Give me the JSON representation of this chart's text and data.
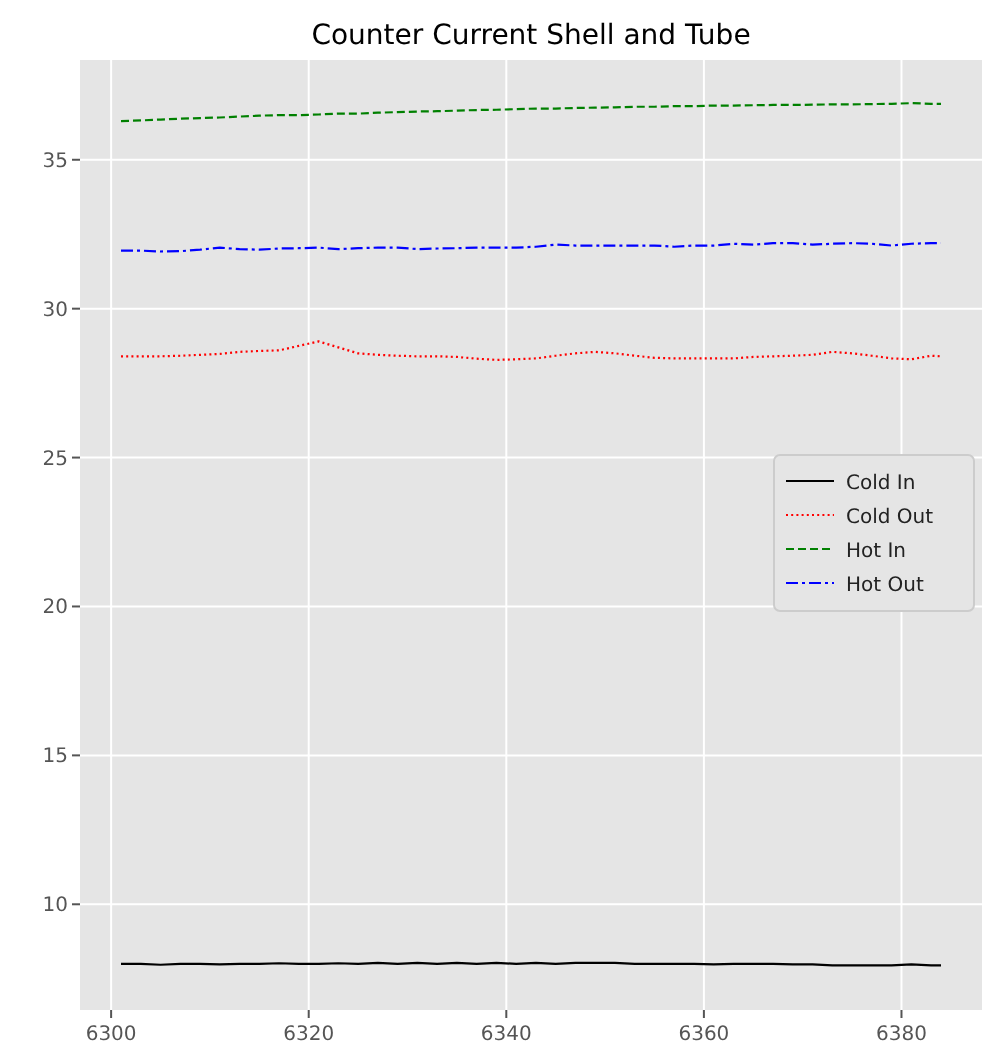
{
  "chart_data": {
    "type": "line",
    "title": "Counter Current Shell and Tube",
    "x": [
      6301,
      6303,
      6305,
      6307,
      6309,
      6311,
      6313,
      6315,
      6317,
      6319,
      6321,
      6323,
      6325,
      6327,
      6329,
      6331,
      6333,
      6335,
      6337,
      6339,
      6341,
      6343,
      6345,
      6347,
      6349,
      6351,
      6353,
      6355,
      6357,
      6359,
      6361,
      6363,
      6365,
      6367,
      6369,
      6371,
      6373,
      6375,
      6377,
      6379,
      6381,
      6383,
      6384
    ],
    "series": [
      {
        "name": "Cold In",
        "color": "#000000",
        "line_style": "solid",
        "values": [
          8.0,
          8.0,
          7.97,
          8.0,
          8.0,
          7.98,
          8.0,
          8.0,
          8.02,
          8.0,
          8.0,
          8.02,
          8.0,
          8.03,
          8.0,
          8.03,
          8.0,
          8.03,
          8.0,
          8.03,
          8.0,
          8.03,
          8.0,
          8.03,
          8.03,
          8.03,
          8.0,
          8.0,
          8.0,
          8.0,
          7.98,
          8.0,
          8.0,
          8.0,
          7.98,
          7.98,
          7.95,
          7.95,
          7.95,
          7.95,
          7.98,
          7.95,
          7.95
        ]
      },
      {
        "name": "Cold Out",
        "color": "#ff0000",
        "line_style": "dotted",
        "values": [
          28.4,
          28.4,
          28.4,
          28.42,
          28.45,
          28.48,
          28.55,
          28.58,
          28.6,
          28.75,
          28.9,
          28.7,
          28.5,
          28.45,
          28.42,
          28.4,
          28.4,
          28.38,
          28.32,
          28.28,
          28.3,
          28.33,
          28.42,
          28.5,
          28.55,
          28.5,
          28.42,
          28.35,
          28.33,
          28.33,
          28.33,
          28.33,
          28.38,
          28.4,
          28.42,
          28.45,
          28.55,
          28.5,
          28.42,
          28.33,
          28.3,
          28.42,
          28.4
        ]
      },
      {
        "name": "Hot In",
        "color": "#008000",
        "line_style": "dashed",
        "values": [
          36.3,
          36.32,
          36.35,
          36.38,
          36.4,
          36.42,
          36.45,
          36.48,
          36.5,
          36.5,
          36.52,
          36.55,
          36.55,
          36.58,
          36.6,
          36.62,
          36.63,
          36.65,
          36.67,
          36.68,
          36.7,
          36.72,
          36.72,
          36.74,
          36.75,
          36.76,
          36.78,
          36.78,
          36.8,
          36.8,
          36.82,
          36.82,
          36.83,
          36.84,
          36.84,
          36.85,
          36.86,
          36.86,
          36.87,
          36.88,
          36.9,
          36.88,
          36.88
        ]
      },
      {
        "name": "Hot Out",
        "color": "#0000ff",
        "line_style": "dashdot",
        "values": [
          31.95,
          31.95,
          31.92,
          31.93,
          31.98,
          32.05,
          32.0,
          31.98,
          32.02,
          32.03,
          32.05,
          32.0,
          32.03,
          32.05,
          32.05,
          32.0,
          32.02,
          32.03,
          32.05,
          32.05,
          32.05,
          32.08,
          32.15,
          32.12,
          32.12,
          32.12,
          32.12,
          32.12,
          32.08,
          32.12,
          32.12,
          32.18,
          32.15,
          32.2,
          32.2,
          32.15,
          32.18,
          32.2,
          32.18,
          32.12,
          32.18,
          32.2,
          32.2
        ]
      }
    ],
    "xlim": [
      6296.85,
      6388.15
    ],
    "ylim": [
      6.45,
      38.35
    ],
    "xticks": [
      6300,
      6320,
      6340,
      6360,
      6380
    ],
    "yticks": [
      10,
      15,
      20,
      25,
      30,
      35
    ],
    "grid": true,
    "legend": "right"
  }
}
